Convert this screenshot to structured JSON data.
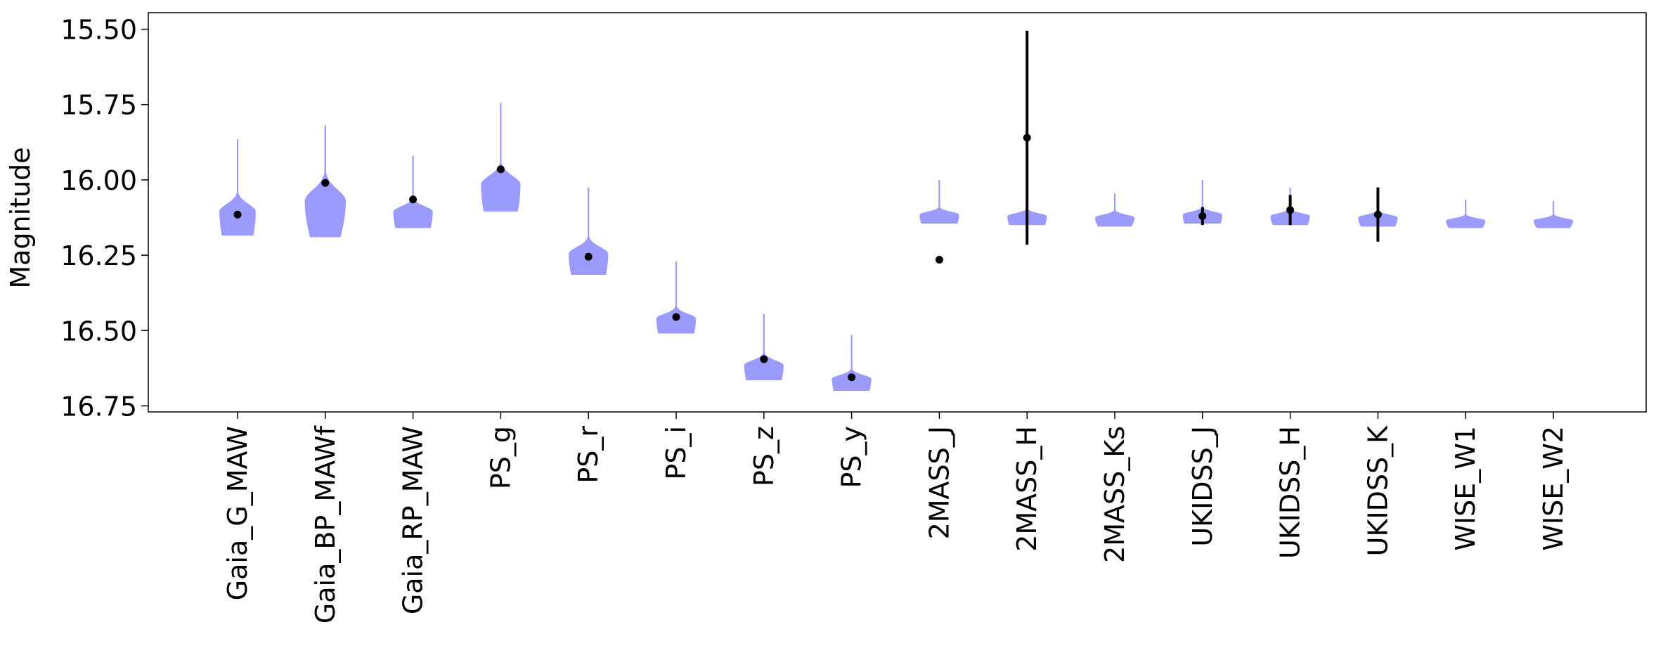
{
  "chart_data": {
    "type": "violin",
    "ylabel": "Magnitude",
    "y_inverted": true,
    "ylim": [
      16.77,
      15.445
    ],
    "yticks": [
      15.5,
      15.75,
      16.0,
      16.25,
      16.5,
      16.75
    ],
    "ytick_labels": [
      "15.50",
      "15.75",
      "16.00",
      "16.25",
      "16.50",
      "16.75"
    ],
    "violin_color": "#9b9bfd",
    "marker_color": "#000000",
    "categories": [
      "Gaia_G_MAW",
      "Gaia_BP_MAWf",
      "Gaia_RP_MAW",
      "PS_g",
      "PS_r",
      "PS_i",
      "PS_z",
      "PS_y",
      "2MASS_J",
      "2MASS_H",
      "2MASS_Ks",
      "UKIDSS_J",
      "UKIDSS_H",
      "UKIDSS_K",
      "WISE_W1",
      "WISE_W2"
    ],
    "violins": [
      {
        "min": 15.865,
        "max": 16.185,
        "median": 16.105,
        "width": 0.46
      },
      {
        "min": 15.82,
        "max": 16.19,
        "median": 16.07,
        "width": 0.52
      },
      {
        "min": 15.92,
        "max": 16.16,
        "median": 16.105,
        "width": 0.5
      },
      {
        "min": 15.745,
        "max": 16.105,
        "median": 16.015,
        "width": 0.5
      },
      {
        "min": 16.025,
        "max": 16.315,
        "median": 16.245,
        "width": 0.5
      },
      {
        "min": 16.27,
        "max": 16.51,
        "median": 16.46,
        "width": 0.5
      },
      {
        "min": 16.445,
        "max": 16.665,
        "median": 16.615,
        "width": 0.5
      },
      {
        "min": 16.515,
        "max": 16.7,
        "median": 16.66,
        "width": 0.5
      },
      {
        "min": 16.0,
        "max": 16.145,
        "median": 16.115,
        "width": 0.5
      },
      {
        "min": 16.01,
        "max": 16.15,
        "median": 16.12,
        "width": 0.5
      },
      {
        "min": 16.045,
        "max": 16.155,
        "median": 16.125,
        "width": 0.5
      },
      {
        "min": 16.0,
        "max": 16.145,
        "median": 16.115,
        "width": 0.5
      },
      {
        "min": 16.025,
        "max": 16.15,
        "median": 16.12,
        "width": 0.5
      },
      {
        "min": 16.035,
        "max": 16.155,
        "median": 16.125,
        "width": 0.5
      },
      {
        "min": 16.065,
        "max": 16.16,
        "median": 16.135,
        "width": 0.5
      },
      {
        "min": 16.07,
        "max": 16.16,
        "median": 16.135,
        "width": 0.5
      }
    ],
    "observations": [
      {
        "y": 16.115,
        "err": 0.005
      },
      {
        "y": 16.01,
        "err": 0.005
      },
      {
        "y": 16.065,
        "err": 0.005
      },
      {
        "y": 15.965,
        "err": 0.005
      },
      {
        "y": 16.255,
        "err": 0.005
      },
      {
        "y": 16.455,
        "err": 0.005
      },
      {
        "y": 16.595,
        "err": 0.005
      },
      {
        "y": 16.655,
        "err": 0.005
      },
      {
        "y": 16.265,
        "err": 0.005
      },
      {
        "y": 15.86,
        "err": 0.355
      },
      null,
      {
        "y": 16.12,
        "err": 0.03
      },
      {
        "y": 16.1,
        "err": 0.05
      },
      {
        "y": 16.115,
        "err": 0.09
      },
      null,
      null
    ]
  }
}
